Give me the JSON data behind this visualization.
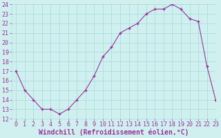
{
  "x": [
    0,
    1,
    2,
    3,
    4,
    5,
    6,
    7,
    8,
    9,
    10,
    11,
    12,
    13,
    14,
    15,
    16,
    17,
    18,
    19,
    20,
    21,
    22,
    23
  ],
  "y": [
    17,
    15,
    14,
    13,
    13,
    12.5,
    13,
    14,
    15,
    16.5,
    18.5,
    19.5,
    21,
    21.5,
    22,
    23,
    23.5,
    23.5,
    24,
    23.5,
    22.5,
    22.2,
    17.5,
    14
  ],
  "line_color": "#993399",
  "marker_color": "#993399",
  "bg_color": "#d0f0f0",
  "plot_bg_color": "#d0f0f0",
  "grid_color": "#aadddd",
  "xlabel": "Windchill (Refroidissement éolien,°C)",
  "xlabel_color": "#993399",
  "ylim": [
    12,
    24
  ],
  "xlim": [
    -0.5,
    23
  ],
  "yticks": [
    12,
    13,
    14,
    15,
    16,
    17,
    18,
    19,
    20,
    21,
    22,
    23,
    24
  ],
  "xticks": [
    0,
    1,
    2,
    3,
    4,
    5,
    6,
    7,
    8,
    9,
    10,
    11,
    12,
    13,
    14,
    15,
    16,
    17,
    18,
    19,
    20,
    21,
    22,
    23
  ],
  "tick_color": "#993399",
  "tick_fontsize": 6,
  "xlabel_fontsize": 7,
  "marker_size": 3
}
